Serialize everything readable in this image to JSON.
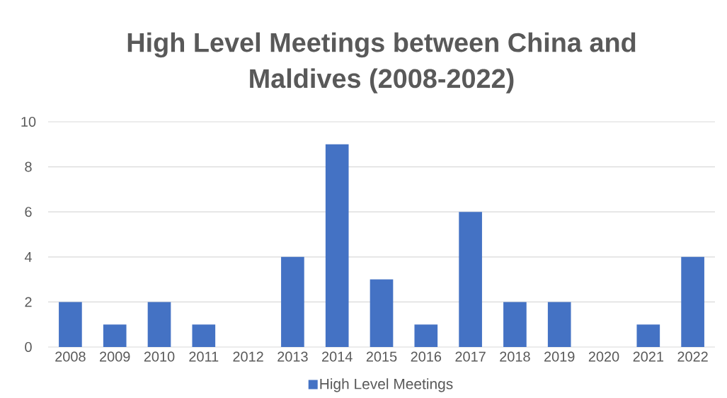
{
  "chart_data": {
    "type": "bar",
    "title": "High Level Meetings  between China and Maldives (2008-2022)",
    "categories": [
      "2008",
      "2009",
      "2010",
      "2011",
      "2012",
      "2013",
      "2014",
      "2015",
      "2016",
      "2017",
      "2018",
      "2019",
      "2020",
      "2021",
      "2022"
    ],
    "series": [
      {
        "name": "High Level Meetings",
        "color": "#4472c4",
        "values": [
          2,
          1,
          2,
          1,
          0,
          4,
          9,
          3,
          1,
          6,
          2,
          2,
          0,
          1,
          4
        ]
      }
    ],
    "ylim": [
      0,
      10
    ],
    "yticks": [
      0,
      2,
      4,
      6,
      8,
      10
    ],
    "grid": "y",
    "legend": "bottom"
  }
}
